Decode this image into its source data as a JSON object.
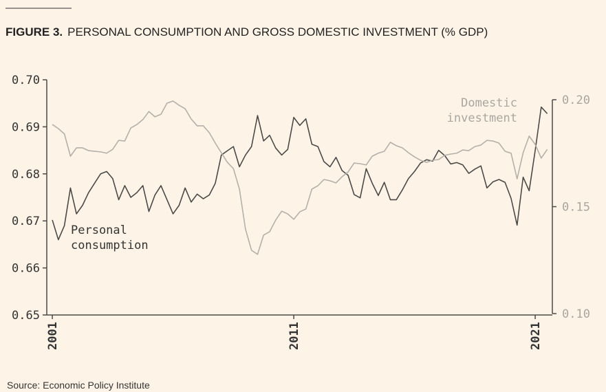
{
  "chart_data": {
    "type": "line",
    "figure_label": "FIGURE 3.",
    "title": "PERSONAL CONSUMPTION AND GROSS DOMESTIC INVESTMENT (% GDP)",
    "source": "Source: Economic Policy Institute",
    "x": [
      2001,
      2001.25,
      2001.5,
      2001.75,
      2002,
      2002.25,
      2002.5,
      2002.75,
      2003,
      2003.25,
      2003.5,
      2003.75,
      2004,
      2004.25,
      2004.5,
      2004.75,
      2005,
      2005.25,
      2005.5,
      2005.75,
      2006,
      2006.25,
      2006.5,
      2006.75,
      2007,
      2007.25,
      2007.5,
      2007.75,
      2008,
      2008.25,
      2008.5,
      2008.75,
      2009,
      2009.25,
      2009.5,
      2009.75,
      2010,
      2010.25,
      2010.5,
      2010.75,
      2011,
      2011.25,
      2011.5,
      2011.75,
      2012,
      2012.25,
      2012.5,
      2012.75,
      2013,
      2013.25,
      2013.5,
      2013.75,
      2014,
      2014.25,
      2014.5,
      2014.75,
      2015,
      2015.25,
      2015.5,
      2015.75,
      2016,
      2016.25,
      2016.5,
      2016.75,
      2017,
      2017.25,
      2017.5,
      2017.75,
      2018,
      2018.25,
      2018.5,
      2018.75,
      2019,
      2019.25,
      2019.5,
      2019.75,
      2020,
      2020.25,
      2020.5,
      2020.75,
      2021,
      2021.25,
      2021.5
    ],
    "xlim": [
      2000.77,
      2021.71
    ],
    "xticks": [
      2001,
      2011,
      2021
    ],
    "ylim": [
      0.65,
      0.7
    ],
    "yticks": [
      0.65,
      0.66,
      0.67,
      0.68,
      0.69,
      {
        "value": 0.7,
        "label": "0.70"
      }
    ],
    "y2lim": [
      0.1,
      0.2
    ],
    "y2ticks": [
      {
        "value": 0.1,
        "label": "0.10"
      },
      0.15,
      {
        "value": 0.2,
        "label": "0.20"
      }
    ],
    "series": [
      {
        "name": "Personal consumption",
        "color": "#4a4947",
        "values": [
          0.6702,
          0.666,
          0.669,
          0.677,
          0.6715,
          0.6733,
          0.676,
          0.678,
          0.68,
          0.6805,
          0.679,
          0.6745,
          0.6775,
          0.675,
          0.676,
          0.6775,
          0.672,
          0.6755,
          0.6775,
          0.6745,
          0.6715,
          0.6733,
          0.677,
          0.674,
          0.6757,
          0.6747,
          0.6755,
          0.678,
          0.684,
          0.6849,
          0.6858,
          0.6815,
          0.684,
          0.6858,
          0.6924,
          0.687,
          0.6882,
          0.6855,
          0.684,
          0.6852,
          0.692,
          0.6903,
          0.6917,
          0.6863,
          0.6858,
          0.6826,
          0.6815,
          0.6835,
          0.6807,
          0.6797,
          0.6756,
          0.6749,
          0.6811,
          0.678,
          0.6754,
          0.6782,
          0.6745,
          0.6745,
          0.6766,
          0.679,
          0.6805,
          0.6823,
          0.683,
          0.6827,
          0.685,
          0.6839,
          0.6821,
          0.6824,
          0.6819,
          0.6801,
          0.681,
          0.6817,
          0.677,
          0.6783,
          0.6788,
          0.6782,
          0.6748,
          0.6691,
          0.6793,
          0.6764,
          0.685,
          0.6942,
          0.6928
        ]
      },
      {
        "name": "Domestic investment",
        "color": "#b3afa9",
        "axis": "y2",
        "values": [
          0.1884,
          0.1865,
          0.184,
          0.1736,
          0.1775,
          0.1775,
          0.1762,
          0.1759,
          0.1756,
          0.175,
          0.1768,
          0.181,
          0.1807,
          0.1868,
          0.1884,
          0.1907,
          0.1945,
          0.192,
          0.1932,
          0.1984,
          0.1994,
          0.1974,
          0.1958,
          0.191,
          0.1878,
          0.1878,
          0.1846,
          0.1797,
          0.1752,
          0.1707,
          0.1678,
          0.1582,
          0.1395,
          0.1296,
          0.1277,
          0.1367,
          0.1383,
          0.1437,
          0.1479,
          0.1466,
          0.1441,
          0.1476,
          0.1489,
          0.1582,
          0.1598,
          0.1627,
          0.1621,
          0.1611,
          0.164,
          0.1662,
          0.1704,
          0.1701,
          0.1695,
          0.1736,
          0.175,
          0.1759,
          0.1801,
          0.1785,
          0.1775,
          0.1752,
          0.1733,
          0.1717,
          0.1707,
          0.1717,
          0.172,
          0.174,
          0.1746,
          0.175,
          0.1765,
          0.1762,
          0.1781,
          0.1788,
          0.181,
          0.1807,
          0.1797,
          0.1759,
          0.175,
          0.163,
          0.1752,
          0.183,
          0.1791,
          0.1727,
          0.1768
        ]
      }
    ]
  }
}
